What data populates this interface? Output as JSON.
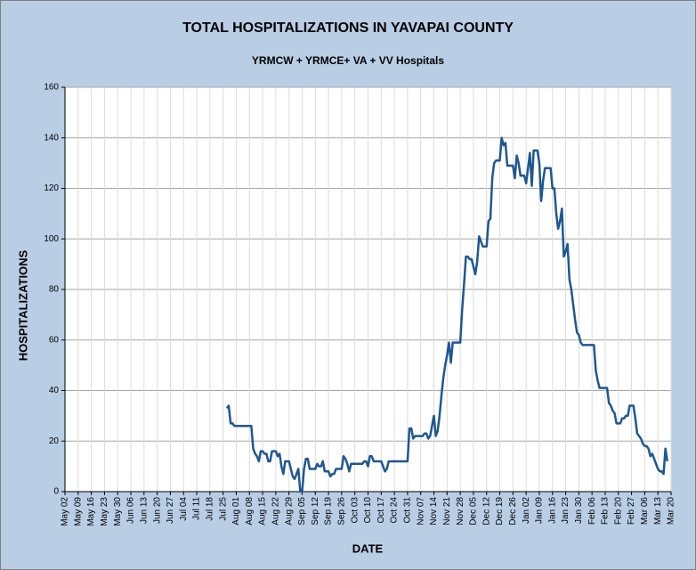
{
  "chart_data": {
    "type": "line",
    "title": "TOTAL HOSPITALIZATIONS IN YAVAPAI COUNTY",
    "subtitle": "YRMCW + YRMCE+ VA + VV Hospitals",
    "x_label": "DATE",
    "y_label": "HOSPITALIZATIONS",
    "xlim": [
      0,
      322
    ],
    "xticks": [
      {
        "value": 0,
        "label": "May 02"
      },
      {
        "value": 7,
        "label": "May 09"
      },
      {
        "value": 14,
        "label": "May 16"
      },
      {
        "value": 21,
        "label": "May 23"
      },
      {
        "value": 28,
        "label": "May 30"
      },
      {
        "value": 35,
        "label": "Jun 06"
      },
      {
        "value": 42,
        "label": "Jun 13"
      },
      {
        "value": 49,
        "label": "Jun 20"
      },
      {
        "value": 56,
        "label": "Jun 27"
      },
      {
        "value": 63,
        "label": "Jul 04"
      },
      {
        "value": 70,
        "label": "Jul 11"
      },
      {
        "value": 77,
        "label": "Jul 18"
      },
      {
        "value": 84,
        "label": "Jul 25"
      },
      {
        "value": 91,
        "label": "Aug 01"
      },
      {
        "value": 98,
        "label": "Aug 08"
      },
      {
        "value": 105,
        "label": "Aug 15"
      },
      {
        "value": 112,
        "label": "Aug 22"
      },
      {
        "value": 119,
        "label": "Aug 29"
      },
      {
        "value": 126,
        "label": "Sep 05"
      },
      {
        "value": 133,
        "label": "Sep 12"
      },
      {
        "value": 140,
        "label": "Sep 19"
      },
      {
        "value": 147,
        "label": "Sep 26"
      },
      {
        "value": 154,
        "label": "Oct 03"
      },
      {
        "value": 161,
        "label": "Oct 10"
      },
      {
        "value": 168,
        "label": "Oct 17"
      },
      {
        "value": 175,
        "label": "Oct 24"
      },
      {
        "value": 182,
        "label": "Oct 31"
      },
      {
        "value": 189,
        "label": "Nov 07"
      },
      {
        "value": 196,
        "label": "Nov 14"
      },
      {
        "value": 203,
        "label": "Nov 21"
      },
      {
        "value": 210,
        "label": "Nov 28"
      },
      {
        "value": 217,
        "label": "Dec 05"
      },
      {
        "value": 224,
        "label": "Dec 12"
      },
      {
        "value": 231,
        "label": "Dec 19"
      },
      {
        "value": 238,
        "label": "Dec 26"
      },
      {
        "value": 245,
        "label": "Jan 02"
      },
      {
        "value": 252,
        "label": "Jan 09"
      },
      {
        "value": 259,
        "label": "Jan 16"
      },
      {
        "value": 266,
        "label": "Jan 23"
      },
      {
        "value": 273,
        "label": "Jan 30"
      },
      {
        "value": 280,
        "label": "Feb 06"
      },
      {
        "value": 287,
        "label": "Feb 13"
      },
      {
        "value": 294,
        "label": "Feb 20"
      },
      {
        "value": 301,
        "label": "Feb 27"
      },
      {
        "value": 308,
        "label": "Mar 06"
      },
      {
        "value": 315,
        "label": "Mar 13"
      },
      {
        "value": 322,
        "label": "Mar 20"
      }
    ],
    "ylim": [
      0,
      160
    ],
    "yticks": [
      0,
      20,
      40,
      60,
      80,
      100,
      120,
      140,
      160
    ],
    "grid": true,
    "x": [
      86,
      87,
      88,
      89,
      90,
      91,
      92,
      93,
      94,
      95,
      96,
      97,
      98,
      99,
      100,
      101,
      102,
      103,
      104,
      105,
      106,
      107,
      108,
      109,
      110,
      111,
      112,
      113,
      114,
      115,
      116,
      117,
      118,
      119,
      120,
      121,
      122,
      123,
      124,
      125,
      126,
      127,
      128,
      129,
      130,
      131,
      132,
      133,
      134,
      135,
      136,
      137,
      138,
      139,
      140,
      141,
      142,
      143,
      144,
      145,
      146,
      147,
      148,
      149,
      150,
      151,
      152,
      153,
      154,
      155,
      156,
      157,
      158,
      159,
      160,
      161,
      162,
      163,
      164,
      165,
      166,
      167,
      168,
      169,
      170,
      171,
      172,
      173,
      174,
      175,
      176,
      177,
      178,
      179,
      180,
      181,
      182,
      183,
      184,
      185,
      186,
      187,
      188,
      189,
      190,
      191,
      192,
      193,
      194,
      195,
      196,
      197,
      198,
      199,
      200,
      201,
      202,
      203,
      204,
      205,
      206,
      207,
      208,
      209,
      210,
      211,
      212,
      213,
      214,
      215,
      216,
      217,
      218,
      219,
      220,
      221,
      222,
      223,
      224,
      225,
      226,
      227,
      228,
      229,
      230,
      231,
      232,
      233,
      234,
      235,
      236,
      237,
      238,
      239,
      240,
      241,
      242,
      243,
      244,
      245,
      246,
      247,
      248,
      249,
      250,
      251,
      252,
      253,
      254,
      255,
      256,
      257,
      258,
      259,
      260,
      261,
      262,
      263,
      264,
      265,
      266,
      267,
      268,
      269,
      270,
      271,
      272,
      273,
      274,
      275,
      276,
      277,
      278,
      279,
      280,
      281,
      282,
      283,
      284,
      285,
      286,
      287,
      288,
      289,
      290,
      291,
      292,
      293,
      294,
      295,
      296,
      297,
      298,
      299,
      300,
      301,
      302,
      303,
      304,
      305,
      306,
      307,
      308,
      309,
      310,
      311,
      312,
      313,
      314,
      315,
      316,
      317,
      318,
      319,
      320
    ],
    "series": [
      {
        "color": "#1f5791",
        "values": [
          33,
          34,
          27,
          27,
          26,
          26,
          26,
          26,
          26,
          26,
          26,
          26,
          26,
          26,
          17,
          15,
          14,
          12,
          16,
          16,
          15,
          15,
          12,
          12,
          16,
          16,
          16,
          14,
          15,
          10,
          7,
          12,
          12,
          12,
          9,
          6,
          5,
          7,
          9,
          0,
          0,
          9,
          13,
          13,
          9,
          9,
          9,
          9,
          11,
          10,
          10,
          12,
          8,
          8,
          8,
          6,
          7,
          7,
          9,
          9,
          9,
          9,
          14,
          13,
          11,
          8,
          11,
          11,
          11,
          11,
          11,
          11,
          11,
          12,
          12,
          10,
          14,
          14,
          12,
          12,
          12,
          12,
          12,
          10,
          8,
          9,
          12,
          12,
          12,
          12,
          12,
          12,
          12,
          12,
          12,
          12,
          12,
          25,
          25,
          21,
          22,
          22,
          22,
          22,
          22,
          23,
          23,
          21,
          22,
          26,
          30,
          22,
          24,
          30,
          38,
          45,
          50,
          54,
          59,
          51,
          59,
          59,
          59,
          59,
          59,
          72,
          82,
          93,
          93,
          92,
          92,
          89,
          86,
          91,
          101,
          99,
          97,
          97,
          97,
          107,
          108,
          124,
          130,
          131,
          131,
          131,
          140,
          137,
          138,
          129,
          129,
          129,
          129,
          124,
          133,
          130,
          125,
          125,
          125,
          122,
          128,
          134,
          121,
          135,
          135,
          135,
          130,
          115,
          123,
          128,
          128,
          128,
          128,
          120,
          120,
          110,
          104,
          107,
          112,
          93,
          95,
          98,
          84,
          80,
          74,
          68,
          63,
          62,
          59,
          58,
          58,
          58,
          58,
          58,
          58,
          58,
          48,
          44,
          41,
          41,
          41,
          41,
          41,
          35,
          34,
          32,
          31,
          27,
          27,
          27,
          29,
          29,
          30,
          30,
          34,
          34,
          34,
          29,
          23,
          22,
          21,
          19,
          18,
          18,
          17,
          14,
          15,
          13,
          11,
          9,
          8,
          8,
          7,
          17,
          12
        ]
      }
    ]
  }
}
